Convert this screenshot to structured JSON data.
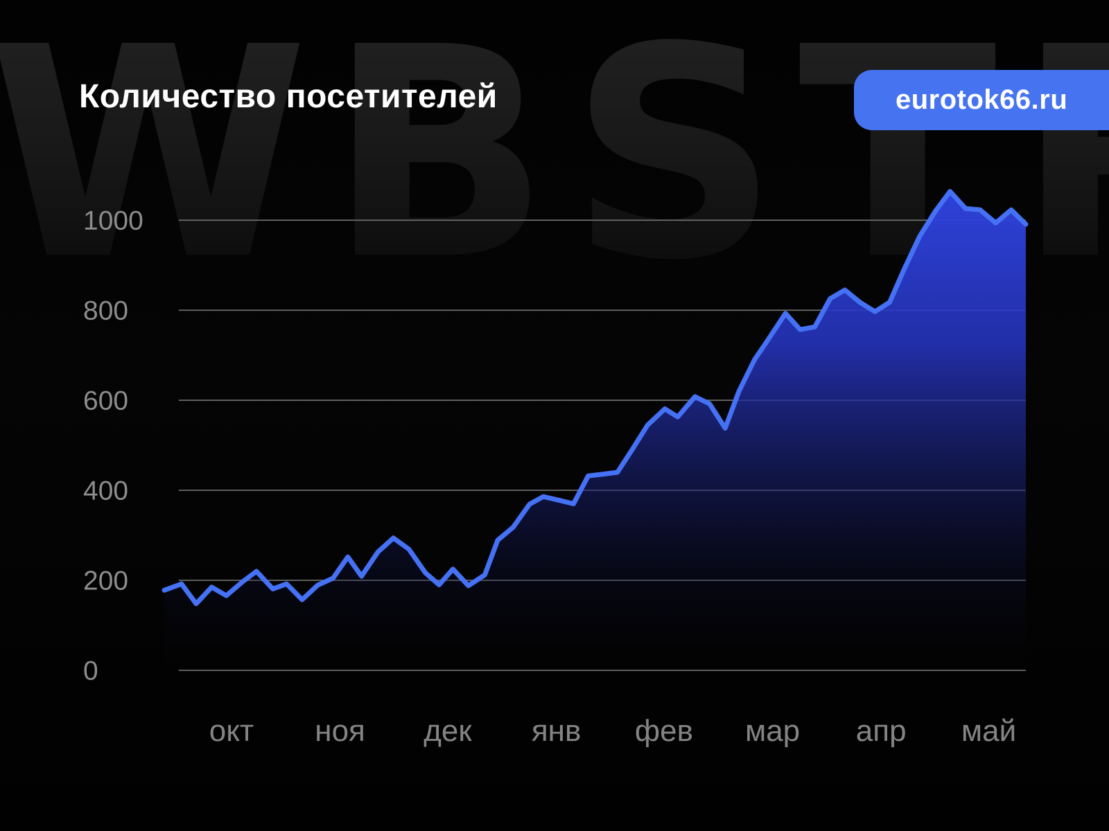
{
  "header": {
    "title": "Количество посетителей",
    "badge_label": "eurotok66.ru",
    "badge_color": "#4673F0"
  },
  "watermark": {
    "text": "WBSTR"
  },
  "colors": {
    "background": "#030303",
    "line": "#4571F5",
    "area_top": "#2F44E0",
    "grid": "#6f6f6f",
    "axis_text": "#8d8d8d",
    "title_text": "#ffffff"
  },
  "chart_data": {
    "type": "area",
    "title": "Количество посетителей",
    "series_name": "посетители",
    "xlabel": "",
    "ylabel": "",
    "ylim": [
      0,
      1000
    ],
    "grid": "horizontal",
    "legend": "none",
    "y_axis": {
      "ticks": [
        0,
        200,
        400,
        600,
        800,
        1000
      ]
    },
    "x_axis": {
      "months": [
        {
          "label": "окт",
          "pos": 7.8
        },
        {
          "label": "ноя",
          "pos": 20.4
        },
        {
          "label": "дек",
          "pos": 32.9
        },
        {
          "label": "янв",
          "pos": 45.5
        },
        {
          "label": "фев",
          "pos": 58.0
        },
        {
          "label": "мар",
          "pos": 70.6
        },
        {
          "label": "апр",
          "pos": 83.2
        },
        {
          "label": "май",
          "pos": 95.7
        }
      ]
    },
    "points_format": "[x_percent_along_axis, visitors]",
    "points": [
      [
        0.0,
        178
      ],
      [
        2.0,
        192
      ],
      [
        3.7,
        148
      ],
      [
        5.5,
        185
      ],
      [
        7.2,
        166
      ],
      [
        9.1,
        197
      ],
      [
        10.7,
        220
      ],
      [
        12.6,
        181
      ],
      [
        14.2,
        192
      ],
      [
        16.0,
        157
      ],
      [
        17.8,
        189
      ],
      [
        19.6,
        205
      ],
      [
        21.3,
        252
      ],
      [
        22.9,
        209
      ],
      [
        24.8,
        263
      ],
      [
        26.6,
        294
      ],
      [
        28.4,
        269
      ],
      [
        30.3,
        217
      ],
      [
        31.9,
        190
      ],
      [
        33.5,
        225
      ],
      [
        35.3,
        188
      ],
      [
        37.2,
        212
      ],
      [
        38.7,
        289
      ],
      [
        40.5,
        318
      ],
      [
        42.4,
        369
      ],
      [
        44.0,
        386
      ],
      [
        45.8,
        378
      ],
      [
        47.5,
        370
      ],
      [
        49.2,
        432
      ],
      [
        51.0,
        436
      ],
      [
        52.6,
        440
      ],
      [
        54.3,
        490
      ],
      [
        56.1,
        545
      ],
      [
        58.1,
        581
      ],
      [
        59.6,
        563
      ],
      [
        61.6,
        608
      ],
      [
        63.3,
        592
      ],
      [
        65.1,
        538
      ],
      [
        66.7,
        620
      ],
      [
        68.5,
        690
      ],
      [
        70.1,
        735
      ],
      [
        72.1,
        793
      ],
      [
        73.8,
        757
      ],
      [
        75.5,
        763
      ],
      [
        77.3,
        826
      ],
      [
        79.0,
        845
      ],
      [
        80.8,
        817
      ],
      [
        82.5,
        797
      ],
      [
        84.2,
        818
      ],
      [
        85.9,
        892
      ],
      [
        87.7,
        965
      ],
      [
        89.5,
        1020
      ],
      [
        91.2,
        1064
      ],
      [
        93.0,
        1026
      ],
      [
        94.7,
        1023
      ],
      [
        96.5,
        994
      ],
      [
        98.3,
        1023
      ],
      [
        100.0,
        991
      ]
    ]
  }
}
